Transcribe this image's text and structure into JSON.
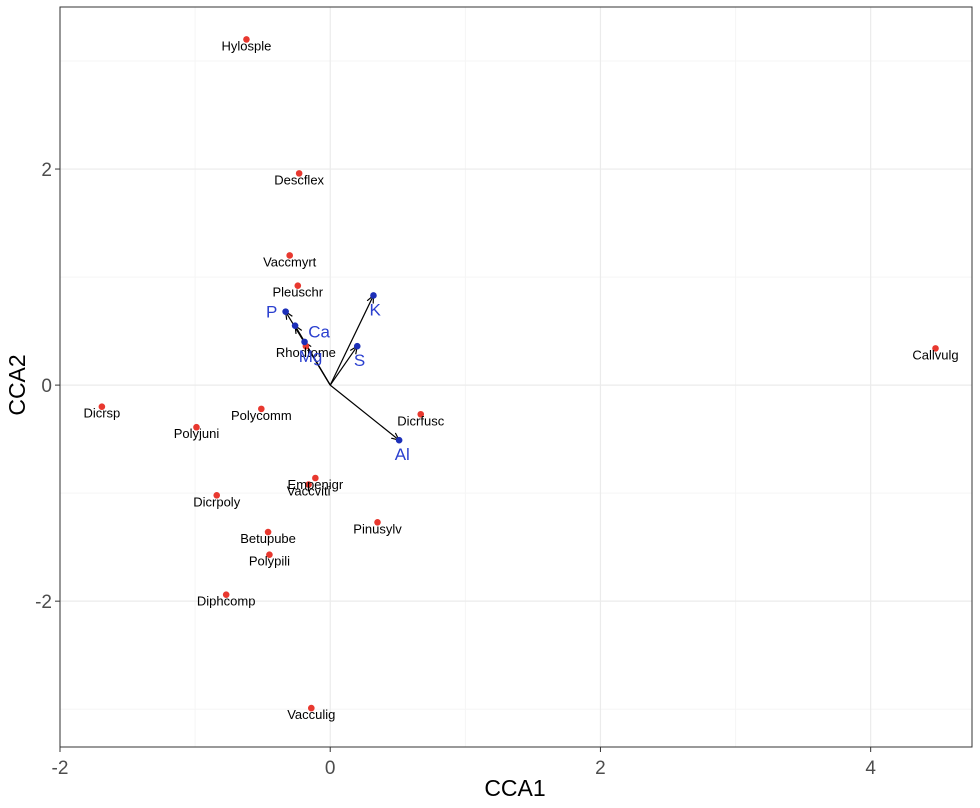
{
  "chart_data": {
    "type": "scatter",
    "title": "",
    "xlabel": "CCA1",
    "ylabel": "CCA2",
    "xlim": [
      -2.0,
      4.75
    ],
    "ylim": [
      -3.35,
      3.5
    ],
    "x_ticks": [
      -2,
      0,
      2,
      4
    ],
    "x_tick_labels": [
      "-2",
      "0",
      "2",
      "4"
    ],
    "y_ticks": [
      -2,
      0,
      2
    ],
    "y_tick_labels": [
      "-2",
      "0",
      "2"
    ],
    "grid": true,
    "colors": {
      "species_point": "#e8382f",
      "env_point": "#1c2fb8",
      "env_label": "#2a3fcf",
      "arrow": "#000000",
      "grid_major": "#ebebeb",
      "grid_minor": "#f5f5f5",
      "panel_border": "#333333"
    },
    "series": [
      {
        "name": "species",
        "points": [
          {
            "label": "Hylosple",
            "x": -0.62,
            "y": 3.2
          },
          {
            "label": "Descflex",
            "x": -0.23,
            "y": 1.96
          },
          {
            "label": "Vaccmyrt",
            "x": -0.3,
            "y": 1.2
          },
          {
            "label": "Pleuschr",
            "x": -0.24,
            "y": 0.92
          },
          {
            "label": "Rhodtome",
            "x": -0.18,
            "y": 0.36
          },
          {
            "label": "Callvulg",
            "x": 4.48,
            "y": 0.34
          },
          {
            "label": "Dicrsp",
            "x": -1.69,
            "y": -0.2
          },
          {
            "label": "Polycomm",
            "x": -0.51,
            "y": -0.22
          },
          {
            "label": "Dicrfusc",
            "x": 0.67,
            "y": -0.27
          },
          {
            "label": "Polyjuni",
            "x": -0.99,
            "y": -0.39
          },
          {
            "label": "Empenigr",
            "x": -0.11,
            "y": -0.86
          },
          {
            "label": "Vaccviti",
            "x": -0.16,
            "y": -0.92
          },
          {
            "label": "Dicrpoly",
            "x": -0.84,
            "y": -1.02
          },
          {
            "label": "Pinusylv",
            "x": 0.35,
            "y": -1.27
          },
          {
            "label": "Betupube",
            "x": -0.46,
            "y": -1.36
          },
          {
            "label": "Polypili",
            "x": -0.45,
            "y": -1.57
          },
          {
            "label": "Diphcomp",
            "x": -0.77,
            "y": -1.94
          },
          {
            "label": "Vacculig",
            "x": -0.14,
            "y": -2.99
          }
        ]
      },
      {
        "name": "environment",
        "vectors": [
          {
            "label": "P",
            "x": -0.33,
            "y": 0.68
          },
          {
            "label": "Ca",
            "x": -0.26,
            "y": 0.55
          },
          {
            "label": "Mg",
            "x": -0.19,
            "y": 0.4
          },
          {
            "label": "K",
            "x": 0.32,
            "y": 0.83
          },
          {
            "label": "S",
            "x": 0.2,
            "y": 0.36
          },
          {
            "label": "Al",
            "x": 0.51,
            "y": -0.51
          }
        ]
      }
    ]
  }
}
